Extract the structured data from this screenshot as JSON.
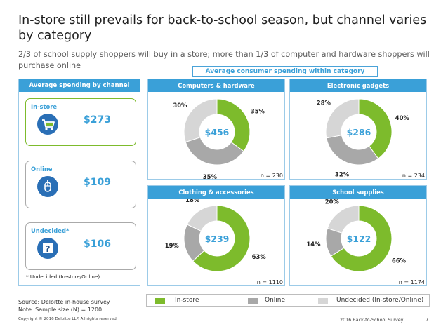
{
  "title": "In-store still prevails for back-to-school season, but channel varies by category",
  "subtitle": "2/3 of school supply shoppers will buy in a store; more than 1/3 of computer and hardware shoppers will purchase online",
  "avg_category_header": "Average consumer spending within category",
  "left_panel": {
    "header": "Average spending by channel",
    "cards": [
      {
        "label": "In-store",
        "value": "$273",
        "icon": "shopping-cart-icon"
      },
      {
        "label": "Online",
        "value": "$109",
        "icon": "computer-mouse-icon"
      },
      {
        "label": "Undecided*",
        "value": "$106",
        "icon": "question-mark-icon"
      }
    ],
    "footnote": "* Undecided (In-store/Online)"
  },
  "colors": {
    "instore": "#7dbb2c",
    "online": "#a8a8a8",
    "undecided": "#d6d6d6",
    "accent": "#3aa0d8"
  },
  "chart_data": [
    {
      "type": "pie",
      "title": "Computers & hardware",
      "center_value": "$456",
      "n_label": "n = 230",
      "categories": [
        "In-store",
        "Online",
        "Undecided (In-store/Online)"
      ],
      "values": [
        35,
        35,
        30
      ],
      "labels": [
        "35%",
        "35%",
        "30%"
      ]
    },
    {
      "type": "pie",
      "title": "Electronic gadgets",
      "center_value": "$286",
      "n_label": "n = 234",
      "categories": [
        "In-store",
        "Online",
        "Undecided (In-store/Online)"
      ],
      "values": [
        40,
        32,
        28
      ],
      "labels": [
        "40%",
        "32%",
        "28%"
      ]
    },
    {
      "type": "pie",
      "title": "Clothing & accessories",
      "center_value": "$239",
      "n_label": "n = 1110",
      "categories": [
        "In-store",
        "Online",
        "Undecided (In-store/Online)"
      ],
      "values": [
        63,
        19,
        18
      ],
      "labels": [
        "63%",
        "19%",
        "18%"
      ]
    },
    {
      "type": "pie",
      "title": "School supplies",
      "center_value": "$122",
      "n_label": "n = 1174",
      "categories": [
        "In-store",
        "Online",
        "Undecided (In-store/Online)"
      ],
      "values": [
        66,
        14,
        20
      ],
      "labels": [
        "66%",
        "14%",
        "20%"
      ]
    }
  ],
  "legend": [
    {
      "label": "In-store",
      "color": "#7dbb2c"
    },
    {
      "label": "Online",
      "color": "#a8a8a8"
    },
    {
      "label": "Undecided (In-store/Online)",
      "color": "#d6d6d6"
    }
  ],
  "source": {
    "line1": "Source: Deloitte in-house survey",
    "line2": "Note:   Sample size (N) = 1200"
  },
  "footer": {
    "copyright": "Copyright © 2016 Deloitte LLP. All rights reserved.",
    "right": "2016 Back-to-School Survey",
    "page": "7"
  }
}
